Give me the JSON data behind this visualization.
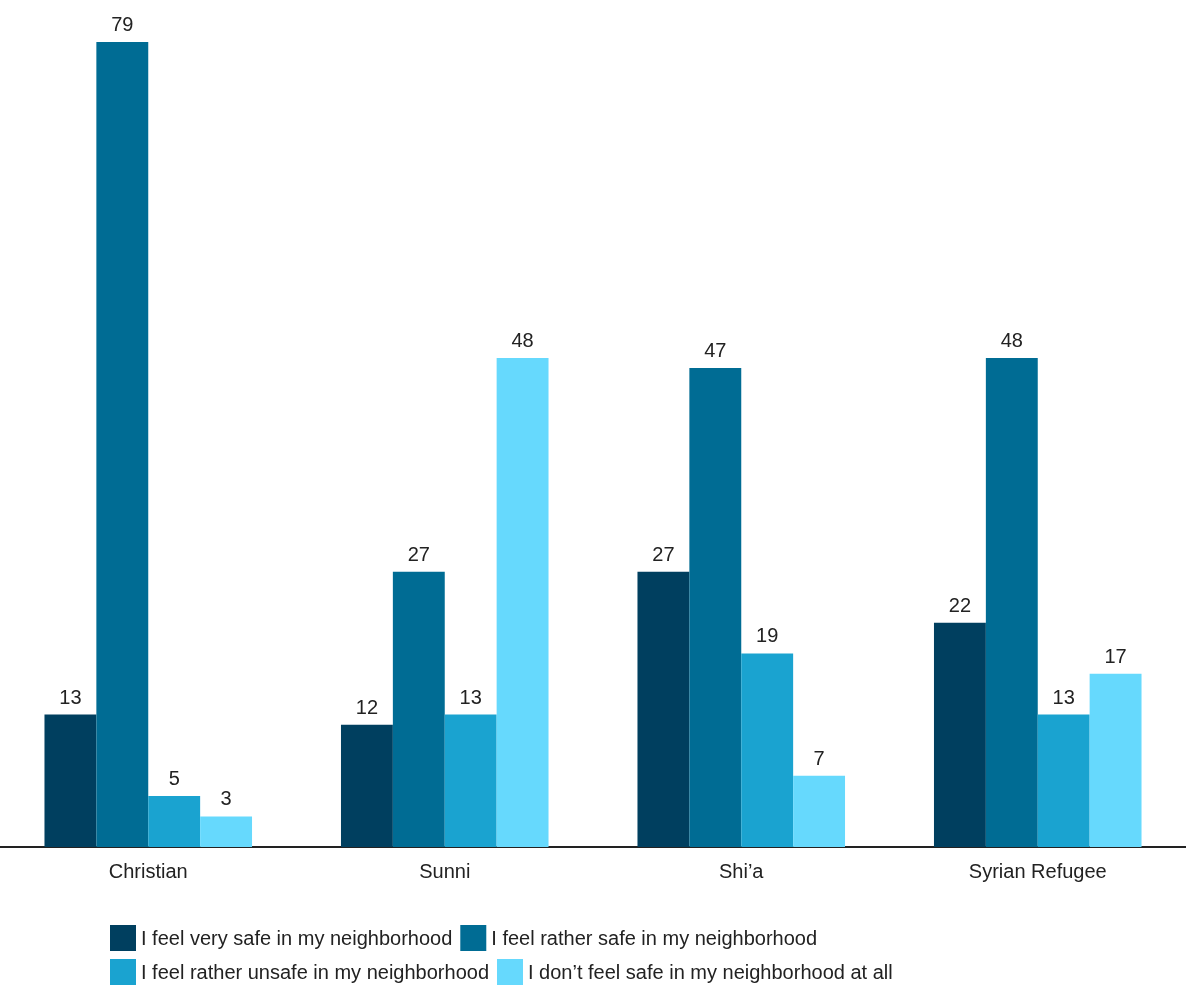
{
  "chart_data": {
    "type": "bar",
    "categories": [
      "Christian",
      "Sunni",
      "Shi’a",
      "Syrian Refugee"
    ],
    "series": [
      {
        "name": "I feel very safe in my neighborhood",
        "color": "#003f5f",
        "values": [
          13,
          12,
          27,
          22
        ]
      },
      {
        "name": "I feel rather safe in my neighborhood",
        "color": "#006c94",
        "values": [
          79,
          27,
          47,
          48
        ]
      },
      {
        "name": "I feel rather unsafe in my neighborhood",
        "color": "#1aa3d0",
        "values": [
          5,
          13,
          19,
          13
        ]
      },
      {
        "name": "I don’t feel safe in my neighborhood at all",
        "color": "#66d9fd",
        "values": [
          3,
          48,
          7,
          17
        ]
      }
    ],
    "data_labels": true,
    "legend": "bottom",
    "grid": false
  }
}
